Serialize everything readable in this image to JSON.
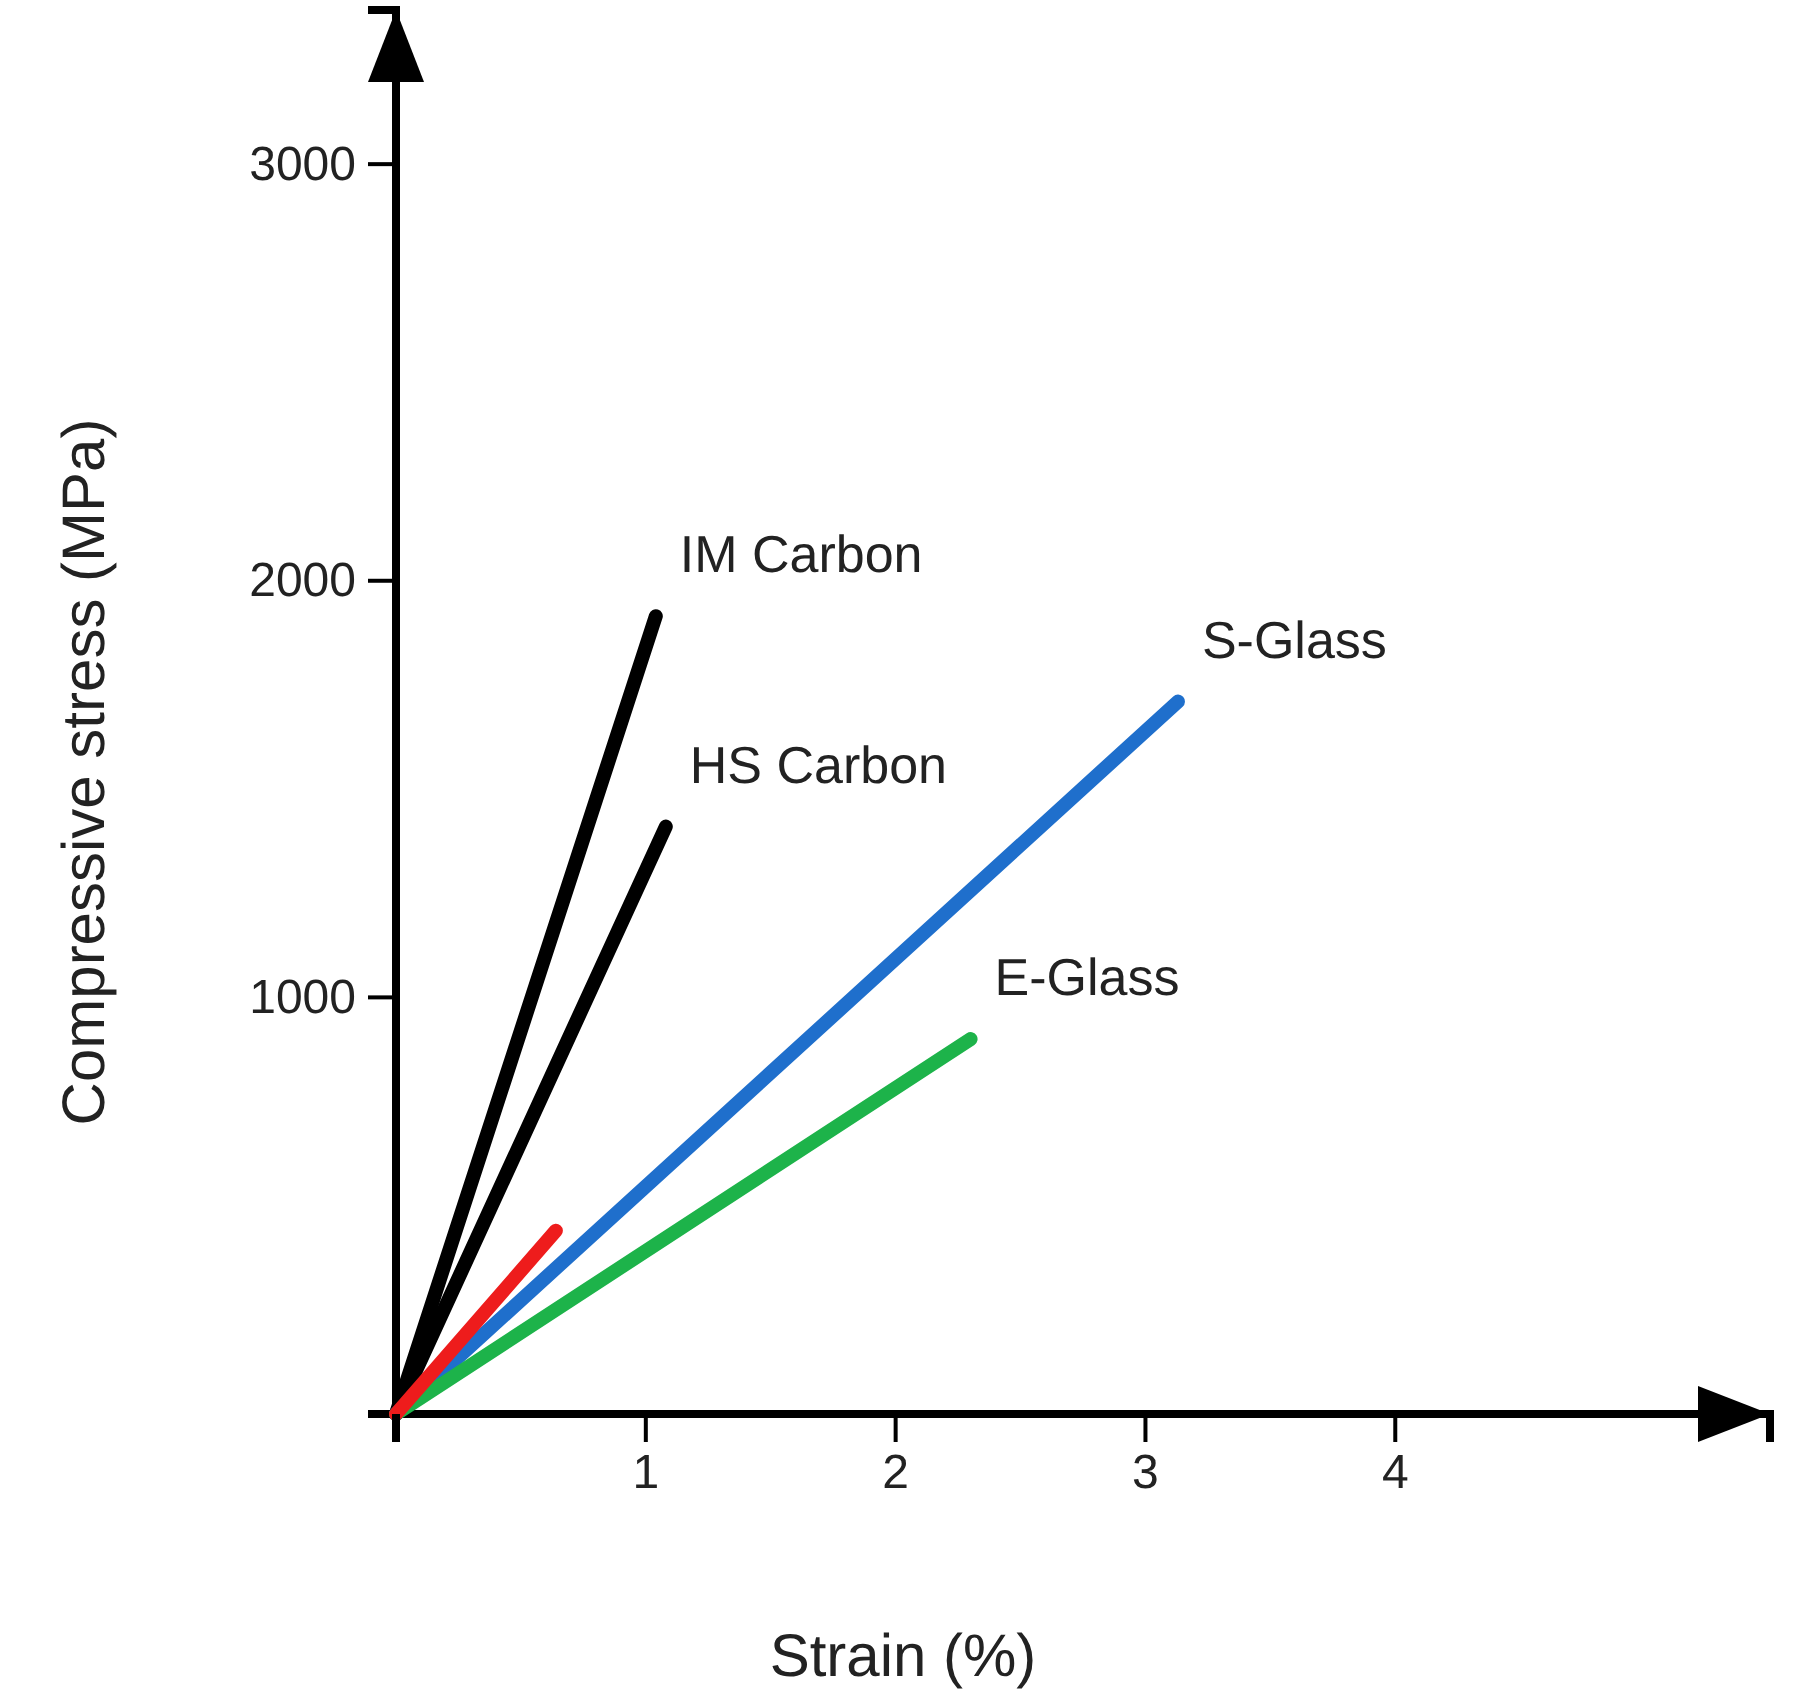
{
  "chart_data": {
    "type": "line",
    "xlabel": "Strain (%)",
    "ylabel": "Compressive stress (MPa)",
    "xlim": [
      0,
      5.5
    ],
    "ylim": [
      0,
      3370
    ],
    "xticks": [
      1,
      2,
      3,
      4
    ],
    "yticks": [
      {
        "value": 0,
        "label": null
      },
      1000,
      2000,
      3000
    ],
    "grid": false,
    "marker": "none",
    "line_style": "solid",
    "series": [
      {
        "name": "IM Carbon",
        "color": "#000000",
        "x": [
          0,
          1.04
        ],
        "values": [
          0,
          1915
        ]
      },
      {
        "name": "HS Carbon",
        "color": "#000000",
        "x": [
          0,
          1.08
        ],
        "values": [
          0,
          1410
        ]
      },
      {
        "name": "S-Glass",
        "color": "#1f6fcc",
        "x": [
          0,
          3.13
        ],
        "values": [
          0,
          1710
        ]
      },
      {
        "name": "E-Glass",
        "color": "#1db34a",
        "x": [
          0,
          2.3
        ],
        "values": [
          0,
          900
        ]
      },
      {
        "color": "#ee1c1c",
        "x": [
          0,
          0.64
        ],
        "values": [
          0,
          440
        ]
      }
    ]
  }
}
